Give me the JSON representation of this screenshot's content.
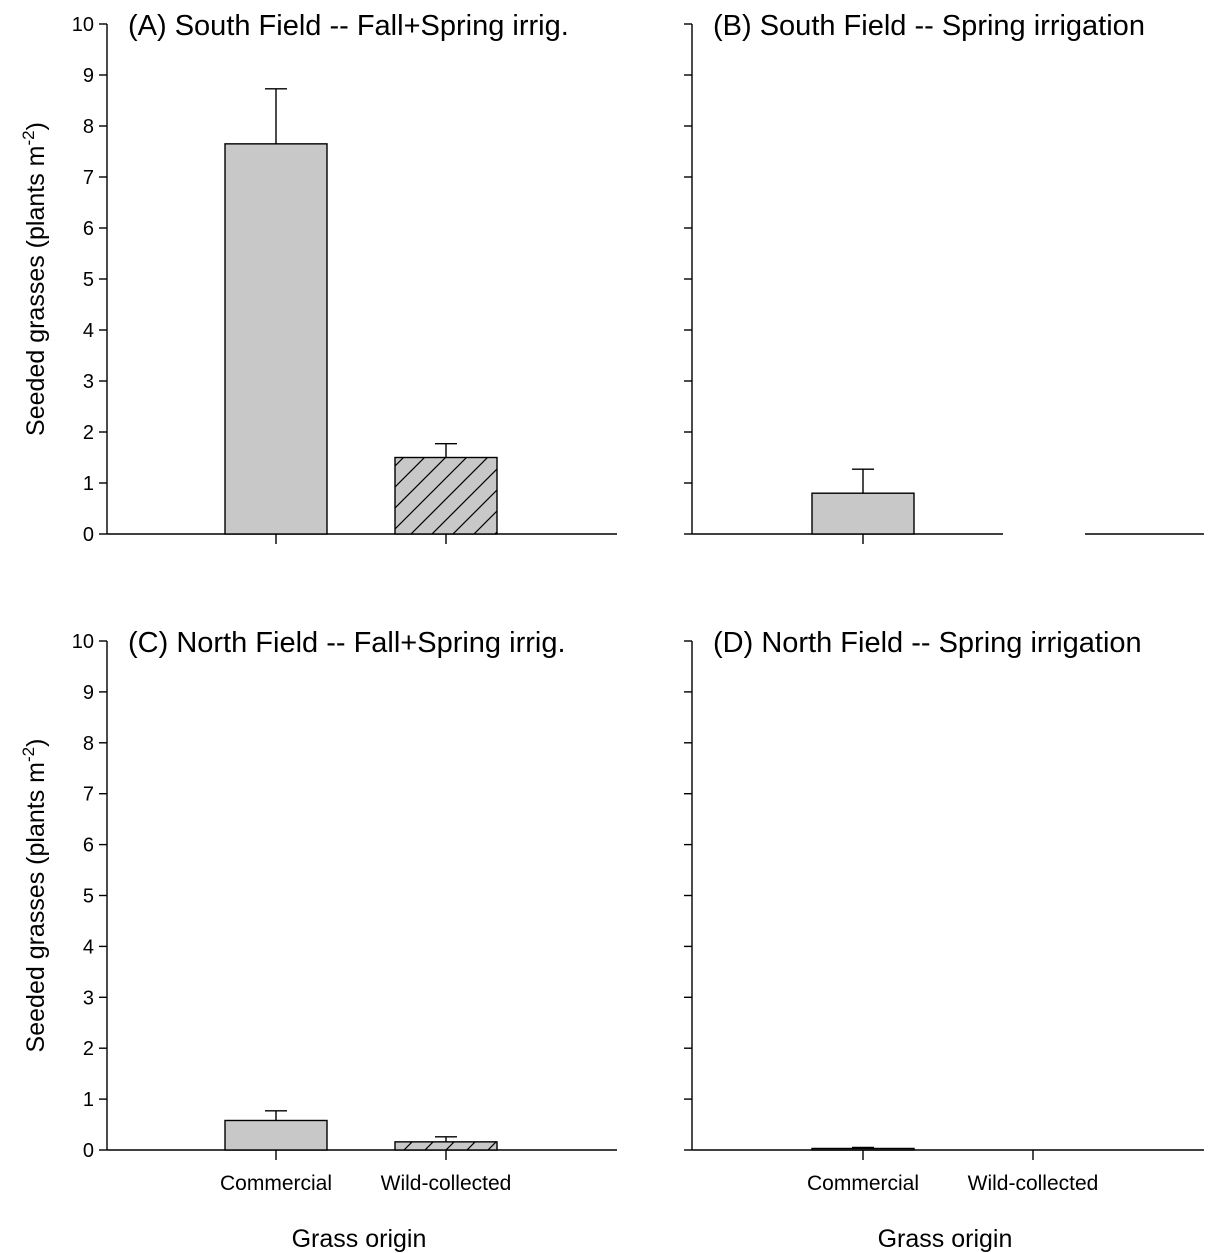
{
  "chart_data": [
    {
      "type": "bar",
      "title": "(A) South Field -- Fall+Spring irrig.",
      "categories": [
        "Commercial",
        "Wild-collected"
      ],
      "values": [
        7.65,
        1.5
      ],
      "errors": [
        1.08,
        0.27
      ],
      "ylabel": "Seeded grasses (plants m-2)",
      "xlabel": "",
      "ylim": [
        0,
        10
      ],
      "yticks": [
        "0",
        "1",
        "2",
        "3",
        "4",
        "5",
        "6",
        "7",
        "8",
        "9",
        "10"
      ],
      "show_ylabel": true,
      "show_yticklabels": true,
      "show_xticklabels": false,
      "show_xlabel": false,
      "axis_break": false
    },
    {
      "type": "bar",
      "title": "(B) South Field -- Spring irrigation",
      "categories": [
        "Commercial",
        "Wild-collected"
      ],
      "values": [
        0.8,
        null
      ],
      "errors": [
        0.47,
        null
      ],
      "ylabel": "",
      "xlabel": "",
      "ylim": [
        0,
        10
      ],
      "yticks": [],
      "show_ylabel": false,
      "show_yticklabels": false,
      "show_xticklabels": false,
      "show_xlabel": false,
      "axis_break": true
    },
    {
      "type": "bar",
      "title": "(C) North Field -- Fall+Spring irrig.",
      "categories": [
        "Commercial",
        "Wild-collected"
      ],
      "values": [
        0.58,
        0.16
      ],
      "errors": [
        0.19,
        0.1
      ],
      "ylabel": "Seeded grasses (plants m-2)",
      "xlabel": "Grass origin",
      "ylim": [
        0,
        10
      ],
      "yticks": [
        "0",
        "1",
        "2",
        "3",
        "4",
        "5",
        "6",
        "7",
        "8",
        "9",
        "10"
      ],
      "show_ylabel": true,
      "show_yticklabels": true,
      "show_xticklabels": true,
      "show_xlabel": true,
      "axis_break": false
    },
    {
      "type": "bar",
      "title": "(D) North Field -- Spring irrigation",
      "categories": [
        "Commercial",
        "Wild-collected"
      ],
      "values": [
        0.03,
        0
      ],
      "errors": [
        0.02,
        0
      ],
      "ylabel": "",
      "xlabel": "Grass origin",
      "ylim": [
        0,
        10
      ],
      "yticks": [],
      "show_ylabel": false,
      "show_yticklabels": false,
      "show_xticklabels": true,
      "show_xlabel": true,
      "axis_break": false
    }
  ],
  "colors": {
    "commercial_fill": "#c8c8c8",
    "wild_fill": "#c8c8c8",
    "stroke": "#000000"
  },
  "patterns": {
    "commercial": "solid",
    "wild_collected": "diagonal-hatch"
  }
}
